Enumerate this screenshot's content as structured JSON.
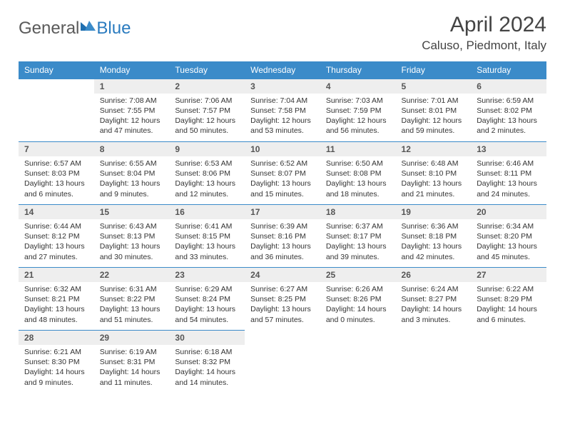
{
  "brand": {
    "part1": "General",
    "part2": "Blue"
  },
  "title": "April 2024",
  "location": "Caluso, Piedmont, Italy",
  "colors": {
    "header_bg": "#3b8bc9",
    "header_fg": "#ffffff",
    "daynum_bg": "#eeeeee",
    "rule": "#3b8bc9",
    "logo_gray": "#5a5a5a",
    "logo_blue": "#2a7bbf"
  },
  "weekdays": [
    "Sunday",
    "Monday",
    "Tuesday",
    "Wednesday",
    "Thursday",
    "Friday",
    "Saturday"
  ],
  "layout": {
    "first_weekday_index": 1,
    "days_in_month": 30
  },
  "days": {
    "1": {
      "sunrise": "7:08 AM",
      "sunset": "7:55 PM",
      "daylight": "12 hours and 47 minutes."
    },
    "2": {
      "sunrise": "7:06 AM",
      "sunset": "7:57 PM",
      "daylight": "12 hours and 50 minutes."
    },
    "3": {
      "sunrise": "7:04 AM",
      "sunset": "7:58 PM",
      "daylight": "12 hours and 53 minutes."
    },
    "4": {
      "sunrise": "7:03 AM",
      "sunset": "7:59 PM",
      "daylight": "12 hours and 56 minutes."
    },
    "5": {
      "sunrise": "7:01 AM",
      "sunset": "8:01 PM",
      "daylight": "12 hours and 59 minutes."
    },
    "6": {
      "sunrise": "6:59 AM",
      "sunset": "8:02 PM",
      "daylight": "13 hours and 2 minutes."
    },
    "7": {
      "sunrise": "6:57 AM",
      "sunset": "8:03 PM",
      "daylight": "13 hours and 6 minutes."
    },
    "8": {
      "sunrise": "6:55 AM",
      "sunset": "8:04 PM",
      "daylight": "13 hours and 9 minutes."
    },
    "9": {
      "sunrise": "6:53 AM",
      "sunset": "8:06 PM",
      "daylight": "13 hours and 12 minutes."
    },
    "10": {
      "sunrise": "6:52 AM",
      "sunset": "8:07 PM",
      "daylight": "13 hours and 15 minutes."
    },
    "11": {
      "sunrise": "6:50 AM",
      "sunset": "8:08 PM",
      "daylight": "13 hours and 18 minutes."
    },
    "12": {
      "sunrise": "6:48 AM",
      "sunset": "8:10 PM",
      "daylight": "13 hours and 21 minutes."
    },
    "13": {
      "sunrise": "6:46 AM",
      "sunset": "8:11 PM",
      "daylight": "13 hours and 24 minutes."
    },
    "14": {
      "sunrise": "6:44 AM",
      "sunset": "8:12 PM",
      "daylight": "13 hours and 27 minutes."
    },
    "15": {
      "sunrise": "6:43 AM",
      "sunset": "8:13 PM",
      "daylight": "13 hours and 30 minutes."
    },
    "16": {
      "sunrise": "6:41 AM",
      "sunset": "8:15 PM",
      "daylight": "13 hours and 33 minutes."
    },
    "17": {
      "sunrise": "6:39 AM",
      "sunset": "8:16 PM",
      "daylight": "13 hours and 36 minutes."
    },
    "18": {
      "sunrise": "6:37 AM",
      "sunset": "8:17 PM",
      "daylight": "13 hours and 39 minutes."
    },
    "19": {
      "sunrise": "6:36 AM",
      "sunset": "8:18 PM",
      "daylight": "13 hours and 42 minutes."
    },
    "20": {
      "sunrise": "6:34 AM",
      "sunset": "8:20 PM",
      "daylight": "13 hours and 45 minutes."
    },
    "21": {
      "sunrise": "6:32 AM",
      "sunset": "8:21 PM",
      "daylight": "13 hours and 48 minutes."
    },
    "22": {
      "sunrise": "6:31 AM",
      "sunset": "8:22 PM",
      "daylight": "13 hours and 51 minutes."
    },
    "23": {
      "sunrise": "6:29 AM",
      "sunset": "8:24 PM",
      "daylight": "13 hours and 54 minutes."
    },
    "24": {
      "sunrise": "6:27 AM",
      "sunset": "8:25 PM",
      "daylight": "13 hours and 57 minutes."
    },
    "25": {
      "sunrise": "6:26 AM",
      "sunset": "8:26 PM",
      "daylight": "14 hours and 0 minutes."
    },
    "26": {
      "sunrise": "6:24 AM",
      "sunset": "8:27 PM",
      "daylight": "14 hours and 3 minutes."
    },
    "27": {
      "sunrise": "6:22 AM",
      "sunset": "8:29 PM",
      "daylight": "14 hours and 6 minutes."
    },
    "28": {
      "sunrise": "6:21 AM",
      "sunset": "8:30 PM",
      "daylight": "14 hours and 9 minutes."
    },
    "29": {
      "sunrise": "6:19 AM",
      "sunset": "8:31 PM",
      "daylight": "14 hours and 11 minutes."
    },
    "30": {
      "sunrise": "6:18 AM",
      "sunset": "8:32 PM",
      "daylight": "14 hours and 14 minutes."
    }
  },
  "labels": {
    "sunrise": "Sunrise:",
    "sunset": "Sunset:",
    "daylight": "Daylight:"
  }
}
